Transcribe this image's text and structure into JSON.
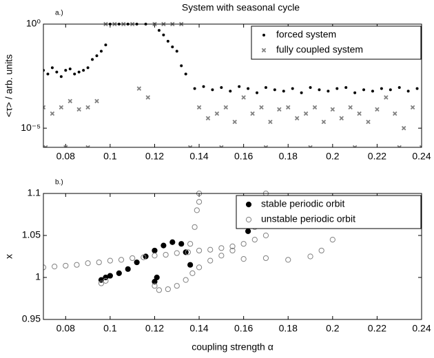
{
  "chart_data": [
    {
      "type": "scatter",
      "title": "System with seasonal cycle",
      "panel_label": "a.)",
      "ylabel": "<τ> / arb. units",
      "xlim": [
        0.07,
        0.24
      ],
      "xticks": [
        0.08,
        0.1,
        0.12,
        0.14,
        0.16,
        0.18,
        0.2,
        0.22,
        0.24
      ],
      "ylim": [
        1.2e-06,
        1
      ],
      "yscale": "log",
      "yticks": [
        {
          "value": 1,
          "label": "10⁰"
        },
        {
          "value": 1e-05,
          "label": "10⁻⁵"
        }
      ],
      "legend": "upper right",
      "series": [
        {
          "name": "forced system",
          "color": "#000000",
          "marker": "dot",
          "x": [
            0.07,
            0.072,
            0.074,
            0.076,
            0.078,
            0.08,
            0.082,
            0.084,
            0.086,
            0.088,
            0.09,
            0.092,
            0.094,
            0.096,
            0.098,
            0.1,
            0.104,
            0.108,
            0.112,
            0.116,
            0.12,
            0.122,
            0.124,
            0.126,
            0.128,
            0.13,
            0.132,
            0.134,
            0.138,
            0.142,
            0.146,
            0.15,
            0.154,
            0.158,
            0.162,
            0.166,
            0.17,
            0.174,
            0.178,
            0.182,
            0.186,
            0.19,
            0.194,
            0.198,
            0.202,
            0.206,
            0.21,
            0.214,
            0.218,
            0.222,
            0.226,
            0.23,
            0.234,
            0.238
          ],
          "values": [
            0.006,
            0.004,
            0.008,
            0.005,
            0.003,
            0.006,
            0.007,
            0.004,
            0.005,
            0.006,
            0.008,
            0.02,
            0.03,
            0.05,
            0.1,
            1,
            1,
            1,
            1,
            1,
            1,
            0.5,
            0.3,
            0.15,
            0.08,
            0.05,
            0.01,
            0.004,
            0.0008,
            0.001,
            0.0007,
            0.0009,
            0.0006,
            0.001,
            0.0008,
            0.0005,
            0.0009,
            0.0007,
            0.0006,
            0.0008,
            0.0005,
            0.0009,
            0.0007,
            0.0006,
            0.0008,
            0.0009,
            0.0005,
            0.0007,
            0.0006,
            0.0008,
            0.0007,
            0.0009,
            0.0006,
            0.0008
          ]
        },
        {
          "name": "fully coupled system",
          "color": "#808080",
          "marker": "x",
          "x": [
            0.07,
            0.074,
            0.078,
            0.082,
            0.086,
            0.09,
            0.094,
            0.071,
            0.08,
            0.09,
            0.098,
            0.102,
            0.106,
            0.11,
            0.113,
            0.117,
            0.12,
            0.124,
            0.128,
            0.132,
            0.136,
            0.14,
            0.144,
            0.148,
            0.152,
            0.156,
            0.16,
            0.164,
            0.168,
            0.172,
            0.176,
            0.18,
            0.184,
            0.188,
            0.192,
            0.196,
            0.2,
            0.204,
            0.208,
            0.212,
            0.216,
            0.22,
            0.224,
            0.228,
            0.232,
            0.236,
            0.15,
            0.17,
            0.19,
            0.21,
            0.23,
            0.24
          ],
          "values": [
            0.0001,
            5e-05,
            0.0001,
            0.0002,
            8e-05,
            0.0001,
            0.0002,
            1.2e-06,
            1.2e-06,
            1.2e-06,
            1,
            1,
            1,
            1,
            0.0008,
            0.0003,
            1,
            1,
            1,
            1,
            1.2e-06,
            0.0001,
            3e-05,
            5e-05,
            0.0001,
            2e-05,
            0.0003,
            5e-05,
            0.0001,
            2e-05,
            8e-05,
            0.0001,
            3e-05,
            5e-05,
            0.0001,
            2e-05,
            8e-05,
            3e-05,
            0.0001,
            5e-05,
            2e-05,
            8e-05,
            0.0003,
            5e-05,
            1e-05,
            0.0001,
            1.2e-06,
            1.2e-06,
            1.2e-06,
            1.2e-06,
            1.2e-06,
            1.2e-06
          ]
        }
      ]
    },
    {
      "type": "scatter",
      "panel_label": "b.)",
      "ylabel": "x",
      "xlabel": "coupling strength α",
      "xlim": [
        0.07,
        0.24
      ],
      "xticks": [
        0.08,
        0.1,
        0.12,
        0.14,
        0.16,
        0.18,
        0.2,
        0.22,
        0.24
      ],
      "ylim": [
        0.95,
        1.1
      ],
      "yticks": [
        0.95,
        1,
        1.05,
        1.1
      ],
      "legend": "upper right",
      "series": [
        {
          "name": "stable periodic orbit",
          "color": "#000000",
          "marker": "filled-circle",
          "x": [
            0.096,
            0.098,
            0.1,
            0.104,
            0.108,
            0.112,
            0.116,
            0.12,
            0.124,
            0.128,
            0.132,
            0.134,
            0.136,
            0.12,
            0.121,
            0.162
          ],
          "values": [
            0.997,
            1.0,
            1.002,
            1.005,
            1.01,
            1.018,
            1.025,
            1.032,
            1.038,
            1.042,
            1.04,
            1.03,
            1.015,
            0.995,
            1.0,
            1.055
          ]
        },
        {
          "name": "unstable periodic orbit",
          "color": "#808080",
          "marker": "open-circle",
          "x": [
            0.07,
            0.075,
            0.08,
            0.085,
            0.09,
            0.095,
            0.1,
            0.105,
            0.11,
            0.115,
            0.12,
            0.125,
            0.13,
            0.135,
            0.14,
            0.145,
            0.15,
            0.155,
            0.16,
            0.165,
            0.17,
            0.136,
            0.138,
            0.139,
            0.14,
            0.14,
            0.12,
            0.122,
            0.126,
            0.13,
            0.134,
            0.137,
            0.14,
            0.145,
            0.15,
            0.155,
            0.16,
            0.17,
            0.18,
            0.19,
            0.195,
            0.2,
            0.165,
            0.168,
            0.17,
            0.096,
            0.098
          ],
          "values": [
            1.012,
            1.013,
            1.014,
            1.015,
            1.017,
            1.018,
            1.02,
            1.021,
            1.023,
            1.024,
            1.026,
            1.027,
            1.029,
            1.03,
            1.032,
            1.033,
            1.035,
            1.037,
            1.04,
            1.045,
            1.05,
            1.04,
            1.06,
            1.08,
            1.09,
            1.1,
            0.99,
            0.985,
            0.986,
            0.99,
            0.997,
            1.005,
            1.012,
            1.02,
            1.026,
            1.032,
            1.022,
            1.023,
            1.021,
            1.025,
            1.032,
            1.045,
            1.06,
            1.08,
            1.1,
            0.993,
            0.996
          ]
        }
      ]
    }
  ]
}
